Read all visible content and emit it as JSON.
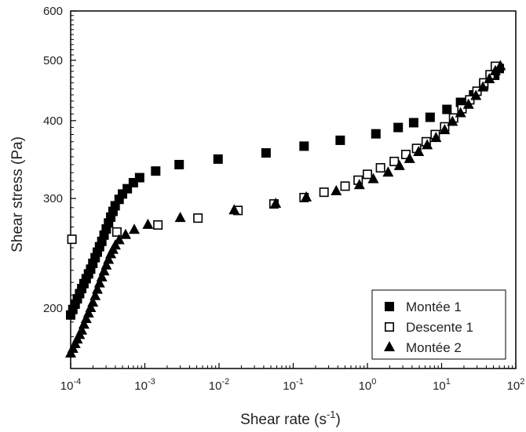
{
  "chart_data": {
    "type": "scatter",
    "title": "",
    "xlabel": "Shear rate (s",
    "xlabel_sup": "-1",
    "xlabel_suffix": ")",
    "ylabel": "Shear stress (Pa)",
    "xscale": "log",
    "yscale": "log",
    "xlim": [
      0.0001,
      100
    ],
    "ylim": [
      160,
      600
    ],
    "x_ticks": [
      {
        "base": "10",
        "exp": "-4"
      },
      {
        "base": "10",
        "exp": "-3"
      },
      {
        "base": "10",
        "exp": "-2"
      },
      {
        "base": "10",
        "exp": "-1"
      },
      {
        "base": "10",
        "exp": "0"
      },
      {
        "base": "10",
        "exp": "1"
      },
      {
        "base": "10",
        "exp": "2"
      }
    ],
    "y_ticks": [
      "200",
      "300",
      "400",
      "500",
      "600"
    ],
    "grid": false,
    "legend_position": "bottom-right",
    "series": [
      {
        "name": "Montée 1",
        "marker": "filled-square",
        "color": "#000000",
        "points": [
          [
            0.0001,
            195
          ],
          [
            0.000107,
            199
          ],
          [
            0.000115,
            203
          ],
          [
            0.000123,
            207
          ],
          [
            0.000132,
            211
          ],
          [
            0.000141,
            215
          ],
          [
            0.000151,
            219
          ],
          [
            0.000162,
            223
          ],
          [
            0.000174,
            227
          ],
          [
            0.000186,
            231
          ],
          [
            0.000199,
            236
          ],
          [
            0.000214,
            241
          ],
          [
            0.000229,
            246
          ],
          [
            0.000245,
            251
          ],
          [
            0.000263,
            256
          ],
          [
            0.000282,
            262
          ],
          [
            0.000302,
            268
          ],
          [
            0.000324,
            274
          ],
          [
            0.000347,
            280
          ],
          [
            0.000372,
            286
          ],
          [
            0.000398,
            292
          ],
          [
            0.00045,
            299
          ],
          [
            0.0005,
            305
          ],
          [
            0.00058,
            311
          ],
          [
            0.0007,
            318
          ],
          [
            0.00085,
            324
          ],
          [
            0.0014,
            332
          ],
          [
            0.0029,
            340
          ],
          [
            0.0097,
            347
          ],
          [
            0.043,
            355
          ],
          [
            0.14,
            364
          ],
          [
            0.43,
            372
          ],
          [
            1.3,
            381
          ],
          [
            2.6,
            390
          ],
          [
            4.2,
            397
          ],
          [
            7.0,
            405
          ],
          [
            11.8,
            417
          ],
          [
            18.0,
            428
          ],
          [
            27.0,
            440
          ],
          [
            37.0,
            456
          ],
          [
            52.0,
            473
          ],
          [
            60.0,
            485
          ]
        ]
      },
      {
        "name": "Descente 1",
        "marker": "open-square",
        "color": "#000000",
        "points": [
          [
            0.000104,
            258
          ],
          [
            0.00042,
            265
          ],
          [
            0.0015,
            272
          ],
          [
            0.0052,
            279
          ],
          [
            0.018,
            287
          ],
          [
            0.055,
            294
          ],
          [
            0.14,
            301
          ],
          [
            0.26,
            307
          ],
          [
            0.5,
            314
          ],
          [
            0.75,
            321
          ],
          [
            1.0,
            328
          ],
          [
            1.5,
            336
          ],
          [
            2.3,
            344
          ],
          [
            3.3,
            353
          ],
          [
            4.6,
            361
          ],
          [
            6.2,
            370
          ],
          [
            8.2,
            380
          ],
          [
            11.0,
            391
          ],
          [
            14.5,
            404
          ],
          [
            18.8,
            418
          ],
          [
            24.0,
            432
          ],
          [
            30.0,
            446
          ],
          [
            37.0,
            460
          ],
          [
            45.0,
            474
          ],
          [
            53.0,
            489
          ]
        ]
      },
      {
        "name": "Montée 2",
        "marker": "filled-triangle",
        "color": "#000000",
        "points": [
          [
            0.0001,
            169
          ],
          [
            0.000107,
            172
          ],
          [
            0.000115,
            175
          ],
          [
            0.000123,
            178
          ],
          [
            0.000132,
            181
          ],
          [
            0.000141,
            184
          ],
          [
            0.000151,
            188
          ],
          [
            0.000162,
            192
          ],
          [
            0.000174,
            196
          ],
          [
            0.000186,
            200
          ],
          [
            0.000199,
            204
          ],
          [
            0.000214,
            209
          ],
          [
            0.000229,
            214
          ],
          [
            0.000245,
            219
          ],
          [
            0.000263,
            224
          ],
          [
            0.000282,
            229
          ],
          [
            0.000302,
            234
          ],
          [
            0.000324,
            239
          ],
          [
            0.000347,
            244
          ],
          [
            0.000372,
            248
          ],
          [
            0.0004,
            252
          ],
          [
            0.00045,
            257
          ],
          [
            0.00055,
            262
          ],
          [
            0.00072,
            267
          ],
          [
            0.0011,
            272
          ],
          [
            0.003,
            279
          ],
          [
            0.016,
            287
          ],
          [
            0.058,
            294
          ],
          [
            0.15,
            301
          ],
          [
            0.38,
            308
          ],
          [
            0.78,
            315
          ],
          [
            1.2,
            322
          ],
          [
            1.9,
            330
          ],
          [
            2.7,
            338
          ],
          [
            3.7,
            347
          ],
          [
            4.9,
            356
          ],
          [
            6.4,
            365
          ],
          [
            8.4,
            375
          ],
          [
            11.0,
            386
          ],
          [
            14.0,
            398
          ],
          [
            18.0,
            411
          ],
          [
            23.0,
            424
          ],
          [
            29.0,
            438
          ],
          [
            36.0,
            452
          ],
          [
            44.0,
            466
          ],
          [
            53.0,
            480
          ],
          [
            62.0,
            489
          ]
        ]
      }
    ]
  }
}
